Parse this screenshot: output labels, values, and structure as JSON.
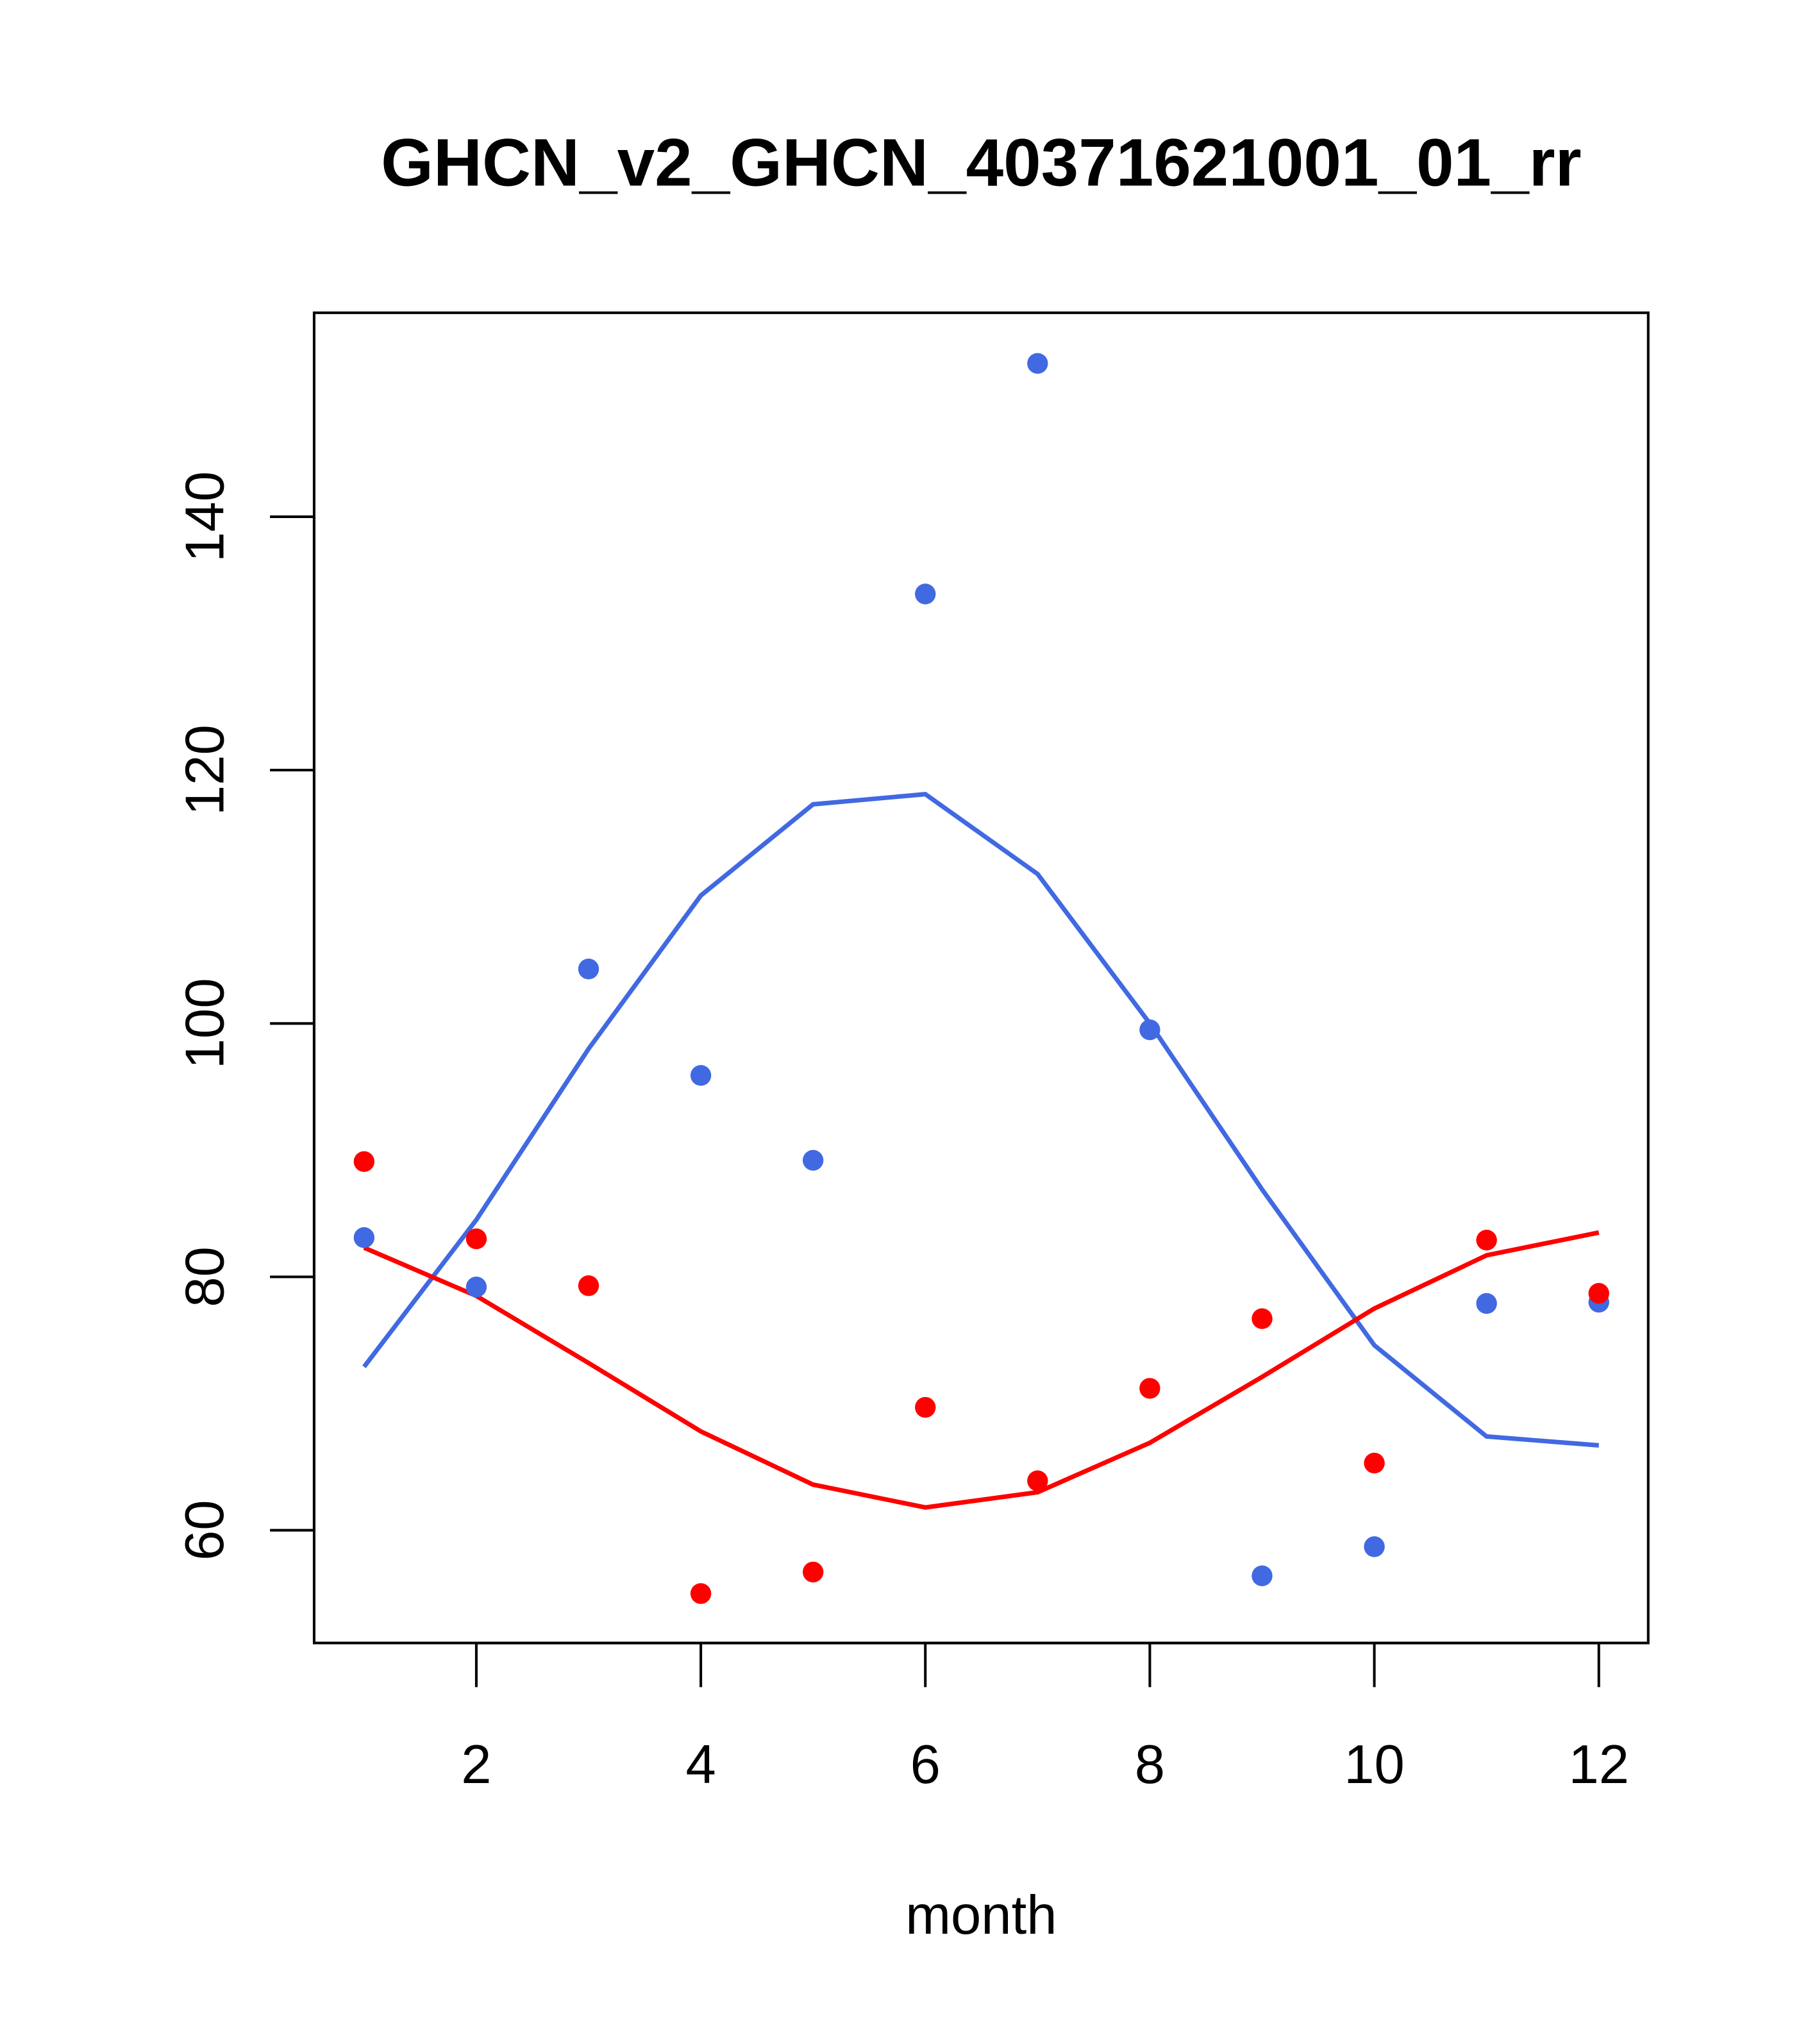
{
  "chart_data": {
    "type": "scatter",
    "title": "GHCN_v2_GHCN_40371621001_01_rr",
    "xlabel": "month",
    "ylabel": "",
    "xlim": [
      0.555,
      12.44
    ],
    "ylim": [
      51.1,
      156.1
    ],
    "xticks": [
      2,
      4,
      6,
      8,
      10,
      12
    ],
    "yticks": [
      60,
      80,
      100,
      120,
      140
    ],
    "grid": false,
    "x": [
      1,
      2,
      3,
      4,
      5,
      6,
      7,
      8,
      9,
      10,
      11,
      12
    ],
    "series": [
      {
        "name": "blue points",
        "kind": "points",
        "color": "#4169E1",
        "values": [
          83.1,
          79.2,
          104.3,
          95.9,
          89.2,
          133.9,
          152.1,
          99.5,
          56.4,
          58.7,
          77.9,
          78.0
        ]
      },
      {
        "name": "red points",
        "kind": "points",
        "color": "#FF0000",
        "values": [
          89.1,
          83.0,
          79.3,
          55.0,
          56.7,
          69.7,
          63.9,
          71.2,
          76.7,
          65.3,
          82.9,
          78.7
        ]
      },
      {
        "name": "blue line",
        "kind": "line",
        "color": "#4169E1",
        "values": [
          72.9,
          84.5,
          98.0,
          110.1,
          117.3,
          118.1,
          111.8,
          100.0,
          86.9,
          74.6,
          67.4,
          66.7
        ]
      },
      {
        "name": "red line",
        "kind": "line",
        "color": "#FF0000",
        "values": [
          82.3,
          78.5,
          73.2,
          67.8,
          63.6,
          61.8,
          63.0,
          66.9,
          72.1,
          77.5,
          81.7,
          83.5
        ]
      }
    ]
  }
}
